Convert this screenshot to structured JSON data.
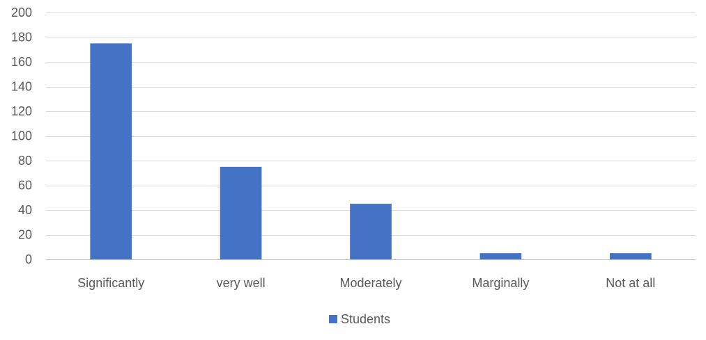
{
  "chart_data": {
    "type": "bar",
    "categories": [
      "Significantly",
      "very well",
      "Moderately",
      "Marginally",
      "Not at all"
    ],
    "series": [
      {
        "name": "Students",
        "values": [
          175,
          75,
          45,
          5,
          5
        ],
        "color": "#4472C4"
      }
    ],
    "ylim": [
      0,
      200
    ],
    "yticks": [
      0,
      20,
      40,
      60,
      80,
      100,
      120,
      140,
      160,
      180,
      200
    ],
    "grid": true,
    "legend": "bottom",
    "title": "",
    "xlabel": "",
    "ylabel": ""
  }
}
